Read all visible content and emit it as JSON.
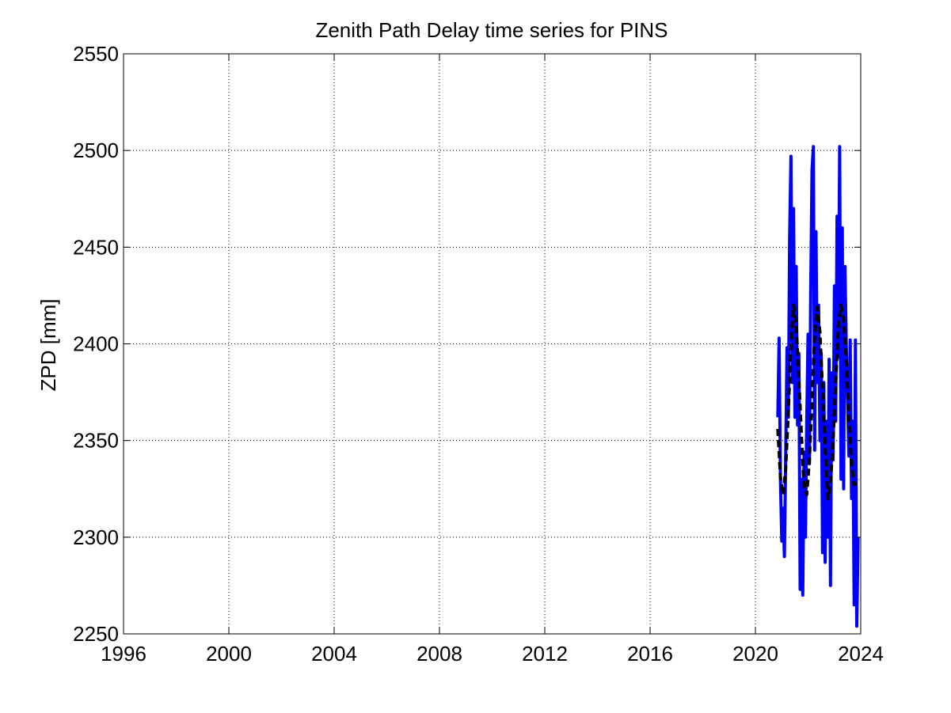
{
  "chart_data": {
    "type": "line",
    "title": "Zenith Path Delay time series for PINS",
    "xlabel": "",
    "ylabel": "ZPD [mm]",
    "xlim": [
      1996,
      2024
    ],
    "ylim": [
      2250,
      2550
    ],
    "xticks": [
      1996,
      2000,
      2004,
      2008,
      2012,
      2016,
      2020,
      2024
    ],
    "yticks": [
      2250,
      2300,
      2350,
      2400,
      2450,
      2500,
      2550
    ],
    "grid": true,
    "series": [
      {
        "style": "solid",
        "color": "#0000ff",
        "x": [
          2020.85,
          2020.9,
          2020.95,
          2021.0,
          2021.05,
          2021.1,
          2021.15,
          2021.2,
          2021.25,
          2021.3,
          2021.35,
          2021.4,
          2021.45,
          2021.5,
          2021.55,
          2021.6,
          2021.65,
          2021.7,
          2021.75,
          2021.8,
          2021.85,
          2021.9,
          2021.95,
          2022.0,
          2022.05,
          2022.1,
          2022.15,
          2022.2,
          2022.25,
          2022.3,
          2022.35,
          2022.4,
          2022.45,
          2022.5,
          2022.55,
          2022.6,
          2022.65,
          2022.7,
          2022.75,
          2022.8,
          2022.85,
          2022.9,
          2022.95,
          2023.0,
          2023.05,
          2023.1,
          2023.15,
          2023.2,
          2023.25,
          2023.3,
          2023.35,
          2023.4,
          2023.45,
          2023.5,
          2023.55,
          2023.6,
          2023.65,
          2023.7,
          2023.75,
          2023.8,
          2023.85,
          2023.9
        ],
        "y": [
          2362,
          2403,
          2330,
          2298,
          2315,
          2290,
          2340,
          2398,
          2362,
          2455,
          2497,
          2380,
          2470,
          2362,
          2440,
          2358,
          2395,
          2273,
          2330,
          2270,
          2344,
          2300,
          2360,
          2405,
          2338,
          2426,
          2490,
          2502,
          2345,
          2458,
          2380,
          2420,
          2350,
          2395,
          2292,
          2380,
          2287,
          2360,
          2300,
          2392,
          2275,
          2385,
          2340,
          2430,
          2360,
          2466,
          2393,
          2502,
          2330,
          2460,
          2325,
          2440,
          2400,
          2370,
          2342,
          2402,
          2320,
          2360,
          2265,
          2402,
          2254,
          2300
        ]
      },
      {
        "style": "dashed",
        "color": "#000000",
        "x": [
          2020.85,
          2020.95,
          2021.05,
          2021.15,
          2021.25,
          2021.35,
          2021.45,
          2021.55,
          2021.65,
          2021.75,
          2021.85,
          2021.95,
          2022.05,
          2022.15,
          2022.25,
          2022.35,
          2022.45,
          2022.55,
          2022.65,
          2022.75,
          2022.85,
          2022.95,
          2023.05,
          2023.15,
          2023.25,
          2023.35,
          2023.45,
          2023.55,
          2023.65,
          2023.75,
          2023.85,
          2023.9
        ],
        "y": [
          2356,
          2331,
          2322,
          2335,
          2365,
          2400,
          2420,
          2410,
          2382,
          2352,
          2325,
          2322,
          2340,
          2372,
          2405,
          2419,
          2406,
          2376,
          2346,
          2320,
          2328,
          2350,
          2380,
          2410,
          2420,
          2412,
          2392,
          2362,
          2338,
          2327,
          2328,
          2330
        ]
      }
    ]
  }
}
